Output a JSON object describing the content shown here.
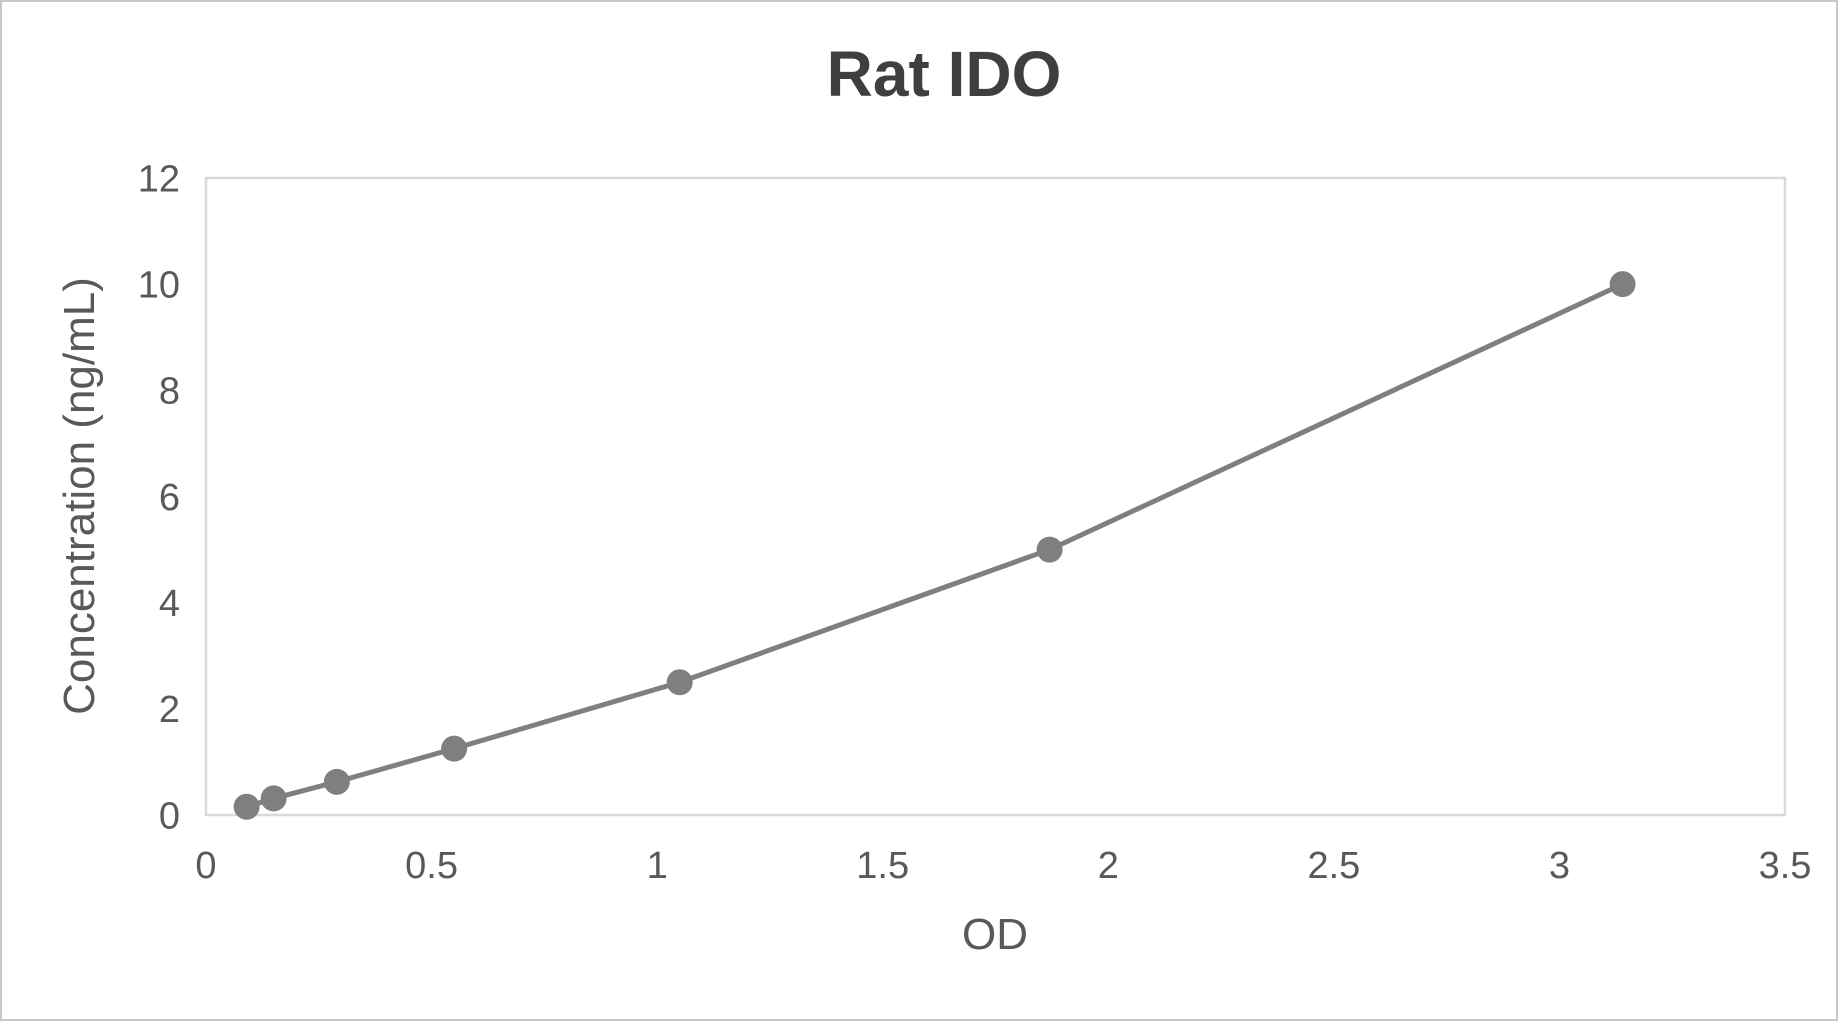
{
  "chart_data": {
    "type": "scatter-line",
    "title": "Rat IDO",
    "xlabel": "OD",
    "ylabel": "Concentration (ng/mL)",
    "xlim": [
      0,
      3.5
    ],
    "ylim": [
      0,
      12
    ],
    "x_ticks": [
      0,
      0.5,
      1,
      1.5,
      2,
      2.5,
      3,
      3.5
    ],
    "y_ticks": [
      0,
      2,
      4,
      6,
      8,
      10,
      12
    ],
    "grid": false,
    "legend": false,
    "series": [
      {
        "marker": "circle",
        "color": "#7f7f7f",
        "points": [
          {
            "od": 0.09,
            "concentration": 0.156
          },
          {
            "od": 0.15,
            "concentration": 0.3125
          },
          {
            "od": 0.29,
            "concentration": 0.625
          },
          {
            "od": 0.55,
            "concentration": 1.25
          },
          {
            "od": 1.05,
            "concentration": 2.5
          },
          {
            "od": 1.87,
            "concentration": 5
          },
          {
            "od": 3.14,
            "concentration": 10
          }
        ]
      }
    ],
    "style": {
      "series_color": "#7f7f7f",
      "plot_border_color": "#d9d9d9",
      "tick_label_color": "#595959",
      "axis_title_color": "#595959",
      "title_color": "#3f3f3f",
      "background": "#ffffff",
      "marker_radius": 13,
      "line_width": 5
    }
  }
}
